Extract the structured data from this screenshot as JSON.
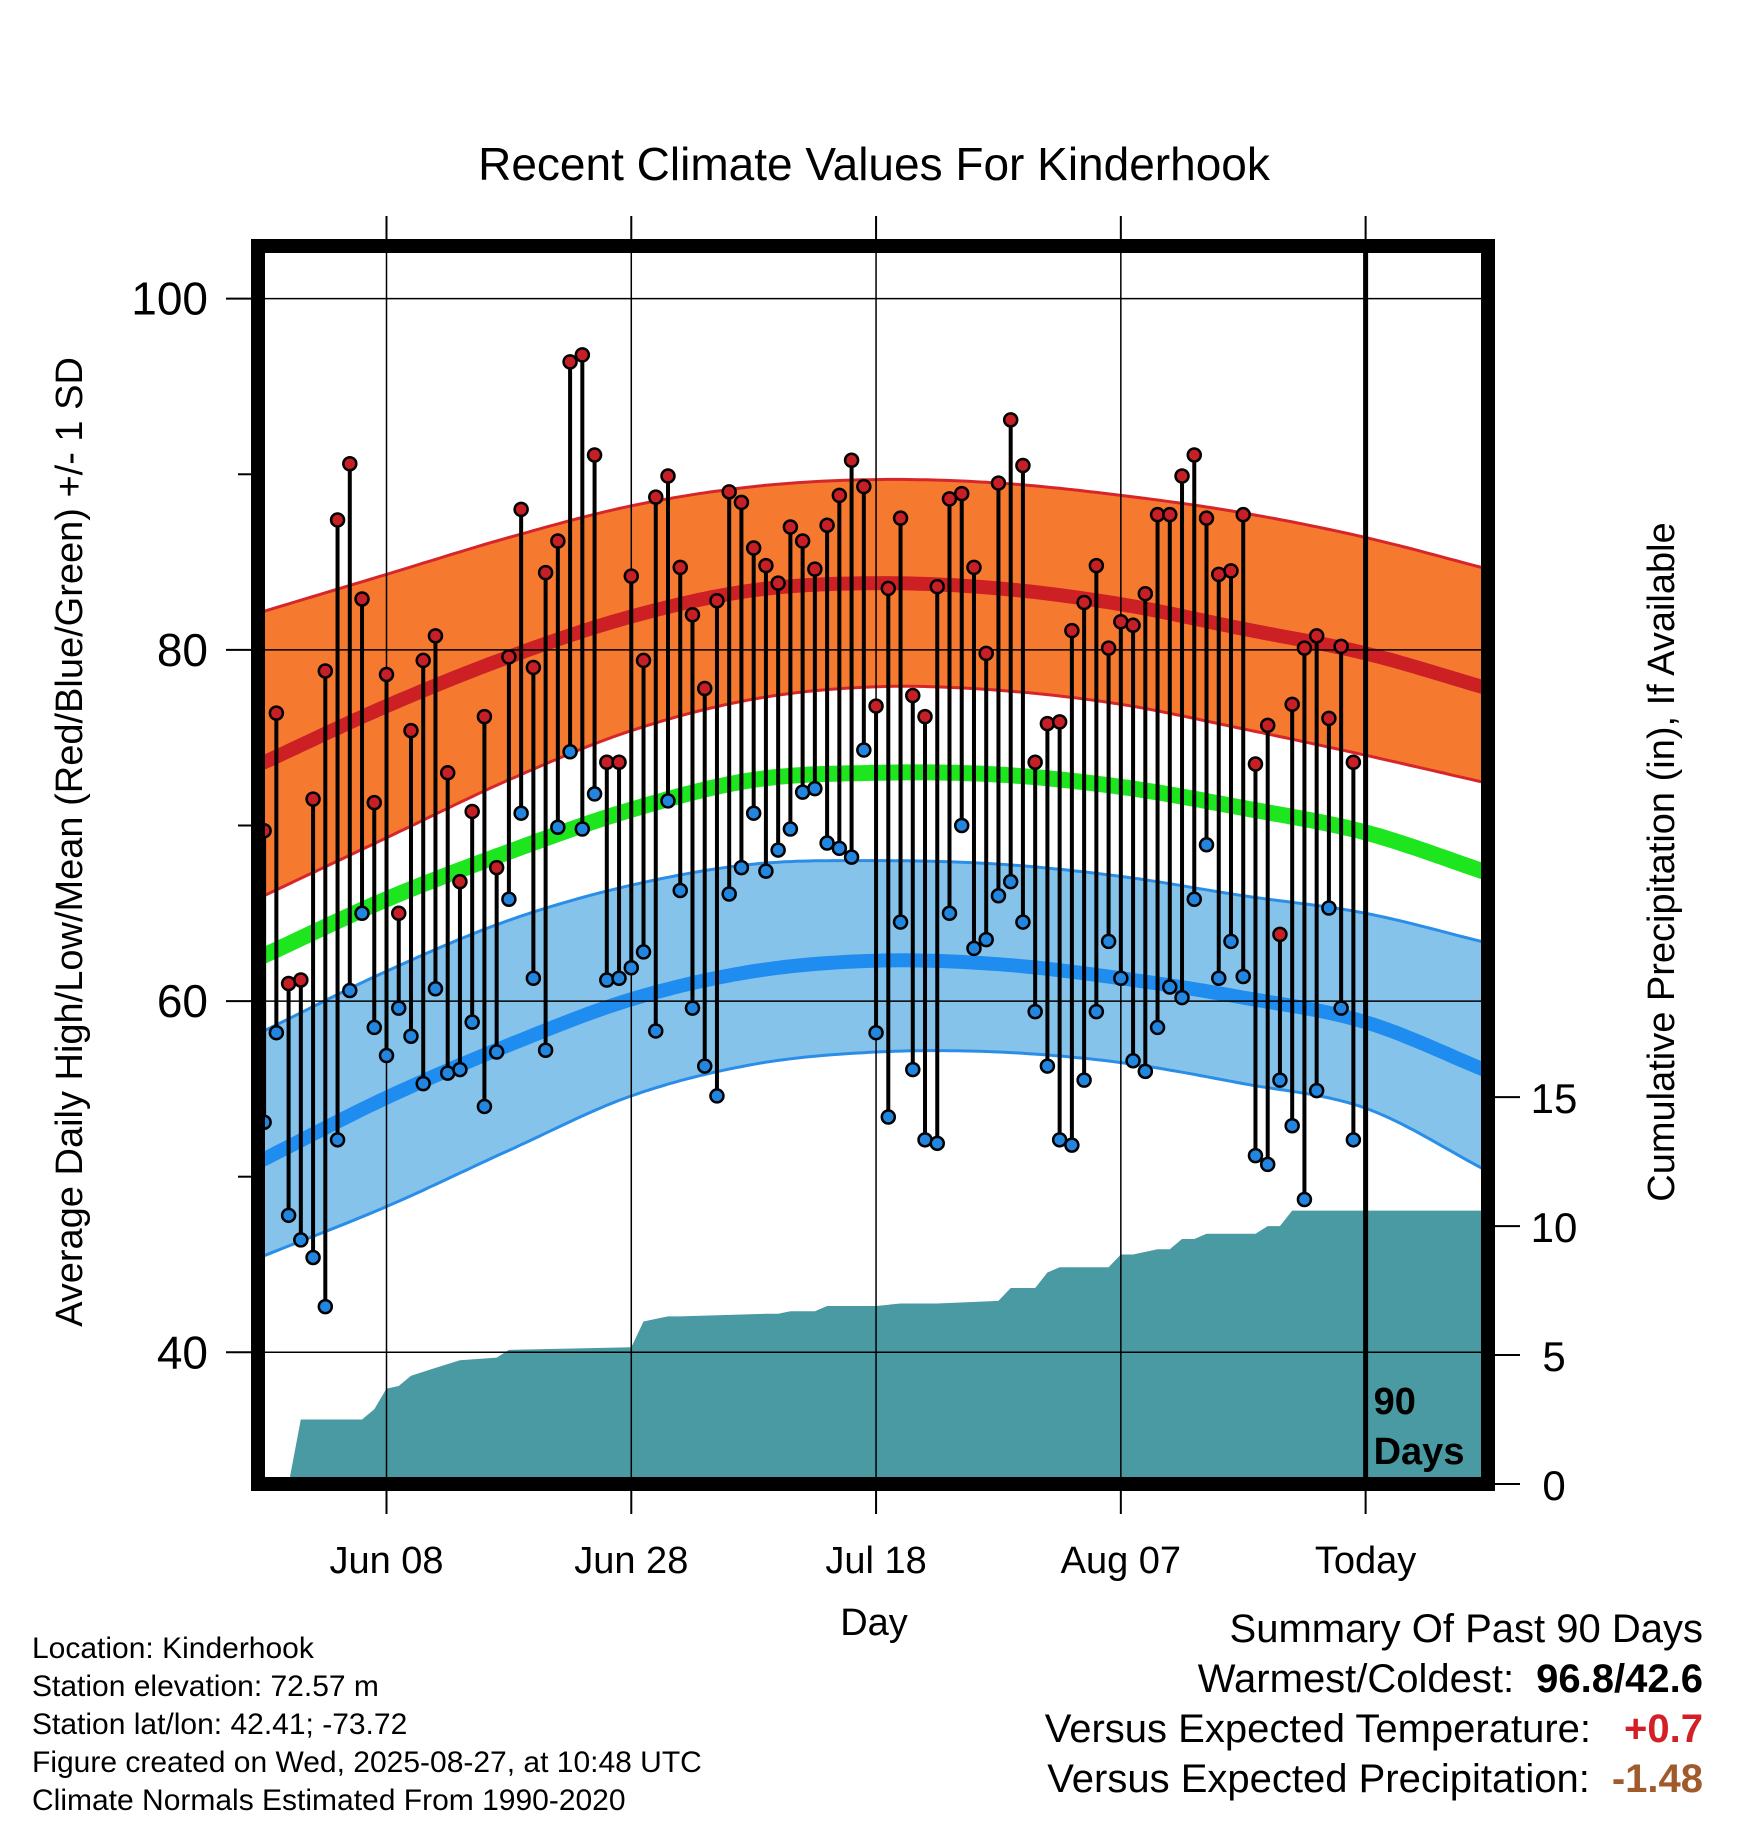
{
  "chart_data": {
    "type": "line",
    "title": "Recent Climate Values For Kinderhook",
    "xlabel": "Day",
    "ylabel_left": "Average Daily High/Low/Mean (Red/Blue/Green) +/- 1 SD",
    "ylabel_right": "Cumulative Precipitation (in), If Available",
    "x_tick_labels": [
      "Jun 08",
      "Jun 28",
      "Jul 18",
      "Aug 07",
      "Today"
    ],
    "x_tick_days": [
      11,
      31,
      51,
      71,
      91
    ],
    "left_axis": {
      "ylim": [
        32.5,
        103
      ],
      "ticks": [
        40,
        60,
        80,
        100
      ],
      "minor_ticks": [
        50,
        70,
        90
      ]
    },
    "right_axis": {
      "ylim": [
        0,
        48
      ],
      "ticks": [
        0,
        5,
        10,
        15
      ]
    },
    "xlim": [
      0.5,
      101
    ],
    "today_marker": {
      "day": 91,
      "label": [
        "90",
        "Days"
      ]
    },
    "grid": true,
    "colors": {
      "high_band": "#f57a30",
      "high_line": "#cd2025",
      "high_edge": "#d7262a",
      "low_band": "#86c3ea",
      "low_line": "#1f8cf0",
      "low_edge": "#2a8ee8",
      "mean_line": "#1ee61e",
      "precip": "#4a9aa4",
      "high_dot": "#c62026",
      "low_dot": "#2286e0"
    },
    "normals": {
      "days": [
        1,
        11,
        21,
        31,
        41,
        51,
        61,
        71,
        81,
        91,
        101
      ],
      "high_mean": [
        73.6,
        76.8,
        79.6,
        81.9,
        83.4,
        83.8,
        83.5,
        82.6,
        81.2,
        79.8,
        77.8
      ],
      "high_sd_upper": [
        82.2,
        84.3,
        86.4,
        88.2,
        89.3,
        89.7,
        89.5,
        88.8,
        87.8,
        86.4,
        84.6
      ],
      "high_sd_lower": [
        66.0,
        69.3,
        72.6,
        75.4,
        77.2,
        77.9,
        77.7,
        76.9,
        75.5,
        74.0,
        72.4
      ],
      "mean": [
        62.6,
        65.8,
        68.5,
        70.9,
        72.6,
        73.0,
        72.9,
        72.2,
        71.0,
        69.6,
        67.3
      ],
      "low_mean": [
        51.0,
        54.5,
        57.5,
        60.1,
        61.7,
        62.3,
        62.1,
        61.3,
        60.2,
        58.8,
        56.0
      ],
      "low_sd_upper": [
        58.3,
        61.7,
        64.6,
        66.6,
        67.8,
        68.0,
        67.8,
        67.1,
        66.0,
        65.0,
        63.3
      ],
      "low_sd_lower": [
        45.5,
        48.3,
        51.5,
        54.6,
        56.4,
        57.1,
        57.1,
        56.5,
        55.3,
        53.9,
        50.3
      ]
    },
    "daily_high": [
      69.7,
      76.4,
      61.0,
      61.2,
      71.5,
      78.8,
      87.4,
      90.6,
      82.9,
      71.3,
      78.6,
      65.0,
      75.4,
      79.4,
      80.8,
      73.0,
      66.8,
      70.8,
      76.2,
      67.6,
      79.6,
      88.0,
      79.0,
      84.4,
      86.2,
      96.4,
      96.8,
      91.1,
      73.6,
      73.6,
      84.2,
      79.4,
      88.7,
      89.9,
      84.7,
      82.0,
      77.8,
      82.8,
      89.0,
      88.4,
      85.8,
      84.8,
      83.8,
      87.0,
      86.2,
      84.6,
      87.1,
      88.8,
      90.8,
      89.3,
      76.8,
      83.5,
      87.5,
      77.4,
      76.2,
      83.6,
      88.6,
      88.9,
      84.7,
      79.8,
      89.5,
      93.1,
      90.5,
      73.6,
      75.8,
      75.9,
      81.1,
      82.7,
      84.8,
      80.1,
      81.6,
      81.4,
      83.2,
      87.7,
      87.7,
      89.9,
      91.1,
      87.5,
      84.3,
      84.5,
      87.7,
      73.5,
      75.7,
      63.8,
      76.9,
      80.1,
      80.8,
      76.1,
      80.2,
      73.6
    ],
    "daily_low": [
      53.1,
      58.2,
      47.8,
      46.4,
      45.4,
      42.6,
      52.1,
      60.6,
      65.0,
      58.5,
      56.9,
      59.6,
      58.0,
      55.3,
      60.7,
      55.9,
      56.1,
      58.8,
      54.0,
      57.1,
      65.8,
      70.7,
      61.3,
      57.2,
      69.9,
      74.2,
      69.8,
      71.8,
      61.2,
      61.3,
      61.9,
      62.8,
      58.3,
      71.4,
      66.3,
      59.6,
      56.3,
      54.6,
      66.1,
      67.6,
      70.7,
      67.4,
      68.6,
      69.8,
      71.9,
      72.1,
      69.0,
      68.7,
      68.2,
      74.3,
      58.2,
      53.4,
      64.5,
      56.1,
      52.1,
      51.9,
      65.0,
      70.0,
      63.0,
      63.5,
      66.0,
      66.8,
      64.5,
      59.4,
      56.3,
      52.1,
      51.8,
      55.5,
      59.4,
      63.4,
      61.3,
      56.6,
      56.0,
      58.5,
      60.8,
      60.2,
      65.8,
      68.9,
      61.3,
      63.4,
      61.4,
      51.2,
      50.7,
      55.5,
      52.9,
      48.7,
      54.9,
      65.3,
      59.6,
      52.1
    ],
    "cumulative_precip": {
      "days": [
        2,
        3,
        4,
        9,
        10,
        11,
        12,
        13,
        15,
        17,
        20,
        21,
        31,
        32,
        33,
        34,
        35,
        42,
        43,
        44,
        46,
        47,
        51,
        53,
        56,
        61,
        62,
        64,
        65,
        66,
        70,
        71,
        72,
        74,
        75,
        76,
        77,
        78,
        82,
        83,
        84,
        85,
        86,
        101
      ],
      "values": [
        0.0,
        0.0,
        2.5,
        2.5,
        2.9,
        3.7,
        3.8,
        4.2,
        4.5,
        4.8,
        4.9,
        5.2,
        5.3,
        6.3,
        6.4,
        6.5,
        6.5,
        6.6,
        6.6,
        6.7,
        6.7,
        6.9,
        6.9,
        7.0,
        7.0,
        7.1,
        7.6,
        7.6,
        8.2,
        8.4,
        8.4,
        8.9,
        8.9,
        9.1,
        9.1,
        9.5,
        9.5,
        9.7,
        9.7,
        10.0,
        10.0,
        10.6,
        10.6,
        10.6
      ]
    }
  },
  "info": {
    "location": "Location: Kinderhook",
    "elevation": "Station elevation: 72.57 m",
    "latlon": "Station lat/lon: 42.41; -73.72",
    "created": "Figure created on Wed, 2025-08-27, at 10:48 UTC",
    "normals": "Climate Normals Estimated From 1990-2020"
  },
  "summary": {
    "title": "Summary Of Past 90 Days",
    "warmest_label": "Warmest/Coldest:",
    "warmest_value": "96.8",
    "coldest_value": "42.6",
    "temp_label": "Versus Expected Temperature:",
    "temp_value": "+0.7",
    "temp_color": "#d22026",
    "precip_label": "Versus Expected Precipitation:",
    "precip_value": "-1.48",
    "precip_color": "#a05a2c"
  }
}
